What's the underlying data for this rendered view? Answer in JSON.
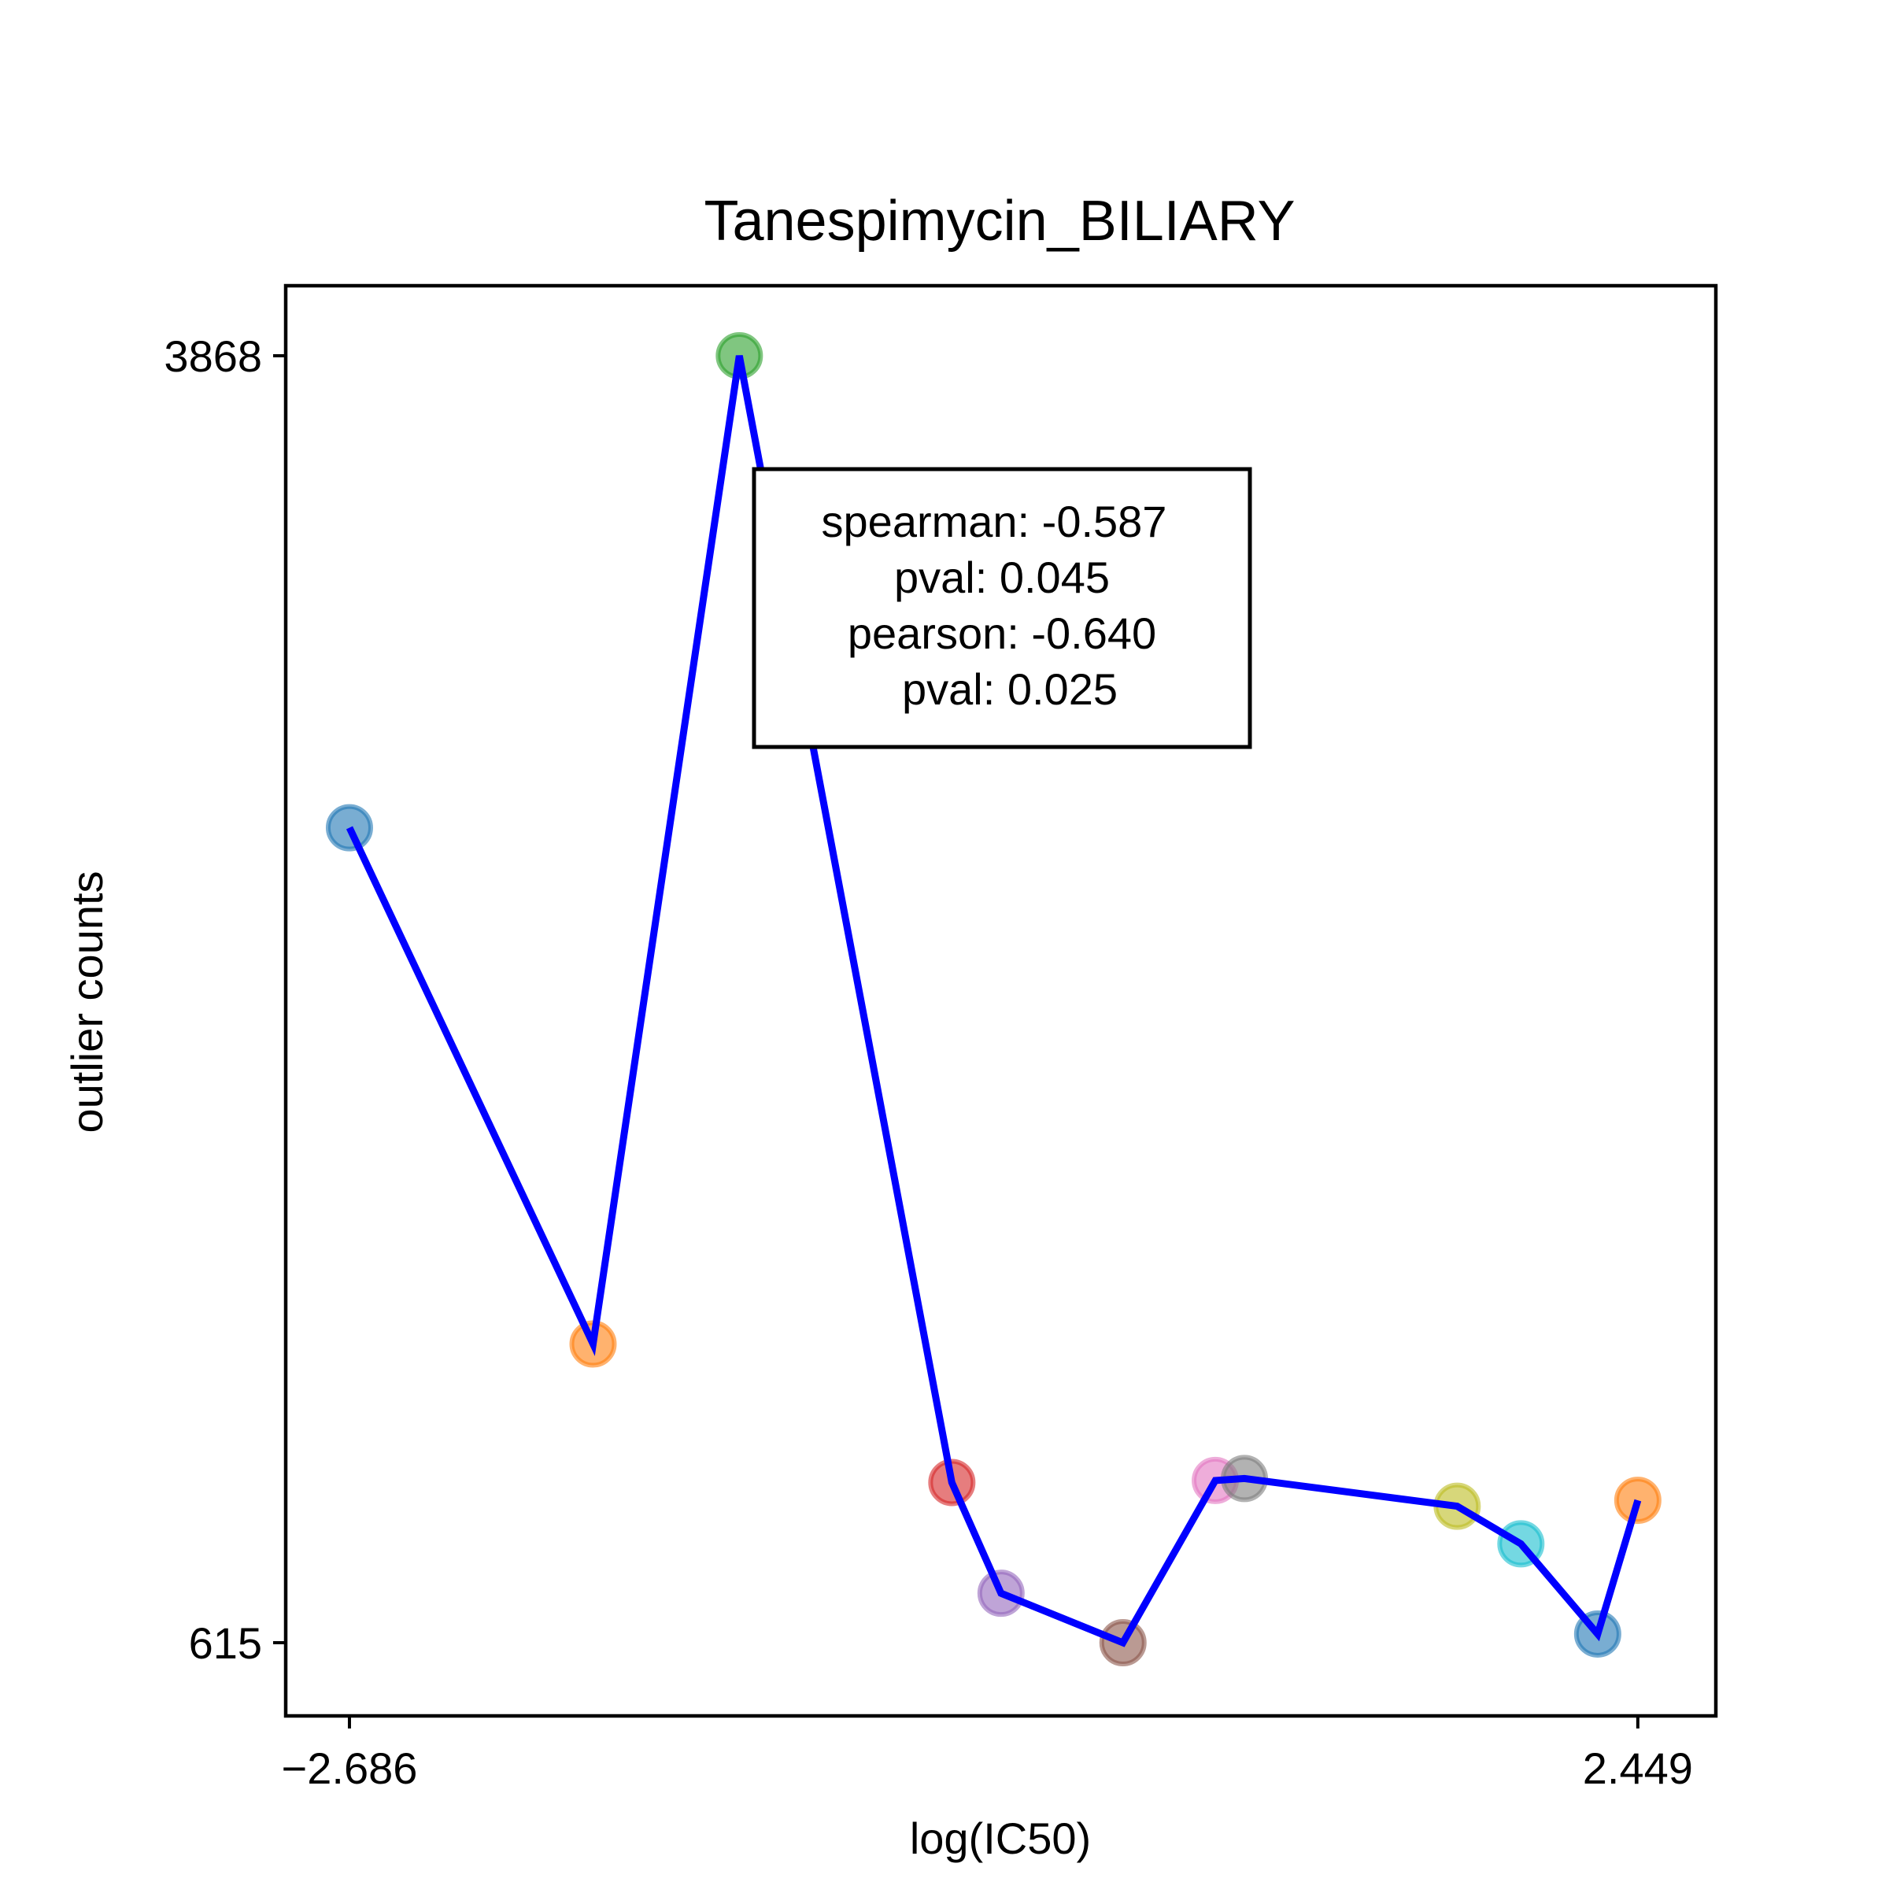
{
  "chart_data": {
    "type": "line",
    "title": "Tanespimycin_BILIARY",
    "xlabel": "log(IC50)",
    "ylabel": "outlier counts",
    "xlim": [
      -2.94,
      2.76
    ],
    "ylim": [
      430,
      4045
    ],
    "xticks": [
      {
        "value": -2.686,
        "label": "−2.686"
      },
      {
        "value": 2.449,
        "label": "2.449"
      }
    ],
    "yticks": [
      {
        "value": 3868,
        "label": "3868"
      },
      {
        "value": 615,
        "label": "615"
      }
    ],
    "series": [
      {
        "line_color": "#0000ff",
        "points": [
          {
            "x": -2.686,
            "y": 2675,
            "color": "#1f77b4"
          },
          {
            "x": -1.715,
            "y": 1370,
            "color": "#ff7f0e"
          },
          {
            "x": -1.132,
            "y": 3868,
            "color": "#2ca02c"
          },
          {
            "x": -0.285,
            "y": 1020,
            "color": "#d62728"
          },
          {
            "x": -0.089,
            "y": 740,
            "color": "#9467bd"
          },
          {
            "x": 0.397,
            "y": 615,
            "color": "#8c564b"
          },
          {
            "x": 0.765,
            "y": 1025,
            "color": "#e377c2"
          },
          {
            "x": 0.881,
            "y": 1030,
            "color": "#7f7f7f"
          },
          {
            "x": 1.729,
            "y": 960,
            "color": "#bcbd22"
          },
          {
            "x": 1.983,
            "y": 865,
            "color": "#17becf"
          },
          {
            "x": 2.289,
            "y": 637,
            "color": "#1f77b4"
          },
          {
            "x": 2.449,
            "y": 975,
            "color": "#ff7f0e"
          }
        ]
      }
    ],
    "annotation": {
      "lines": [
        "spearman: -0.587",
        "pval: 0.045",
        "pearson: -0.640",
        "pval: 0.025"
      ]
    },
    "grid": false,
    "legend": "none"
  }
}
